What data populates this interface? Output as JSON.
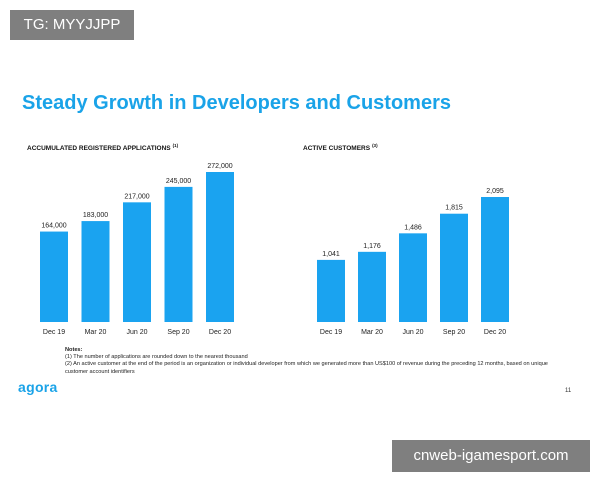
{
  "top_tag": "TG: MYYJJPP",
  "slide": {
    "title": "Steady Growth in Developers and Customers",
    "page_number": "11",
    "logo_text": "agora"
  },
  "chart_data": [
    {
      "type": "bar",
      "title": "ACCUMULATED REGISTERED APPLICATIONS",
      "title_note": "(1)",
      "categories": [
        "Dec 19",
        "Mar 20",
        "Jun 20",
        "Sep 20",
        "Dec 20"
      ],
      "values": [
        164000,
        183000,
        217000,
        245000,
        272000
      ],
      "value_labels": [
        "164,000",
        "183,000",
        "217,000",
        "245,000",
        "272,000"
      ],
      "ylim": [
        0,
        272000
      ],
      "color": "#1aa3f0",
      "grid": false,
      "legend": "none"
    },
    {
      "type": "bar",
      "title": "ACTIVE CUSTOMERS",
      "title_note": "(3)",
      "categories": [
        "Dec 19",
        "Mar 20",
        "Jun 20",
        "Sep 20",
        "Dec 20"
      ],
      "values": [
        1041,
        1176,
        1486,
        1815,
        2095
      ],
      "value_labels": [
        "1,041",
        "1,176",
        "1,486",
        "1,815",
        "2,095"
      ],
      "ylim": [
        0,
        2095
      ],
      "color": "#1aa3f0",
      "grid": false,
      "legend": "none"
    }
  ],
  "notes": {
    "title": "Notes:",
    "items": [
      "(1) The number of applications are rounded down to the nearest thousand",
      "(2) An active customer at the end of the period is an organization or individual developer from which we generated more than US$100 of revenue during the preceding 12 months, based on unique customer account identifiers"
    ]
  },
  "watermark": "cnweb-igamesport.com"
}
